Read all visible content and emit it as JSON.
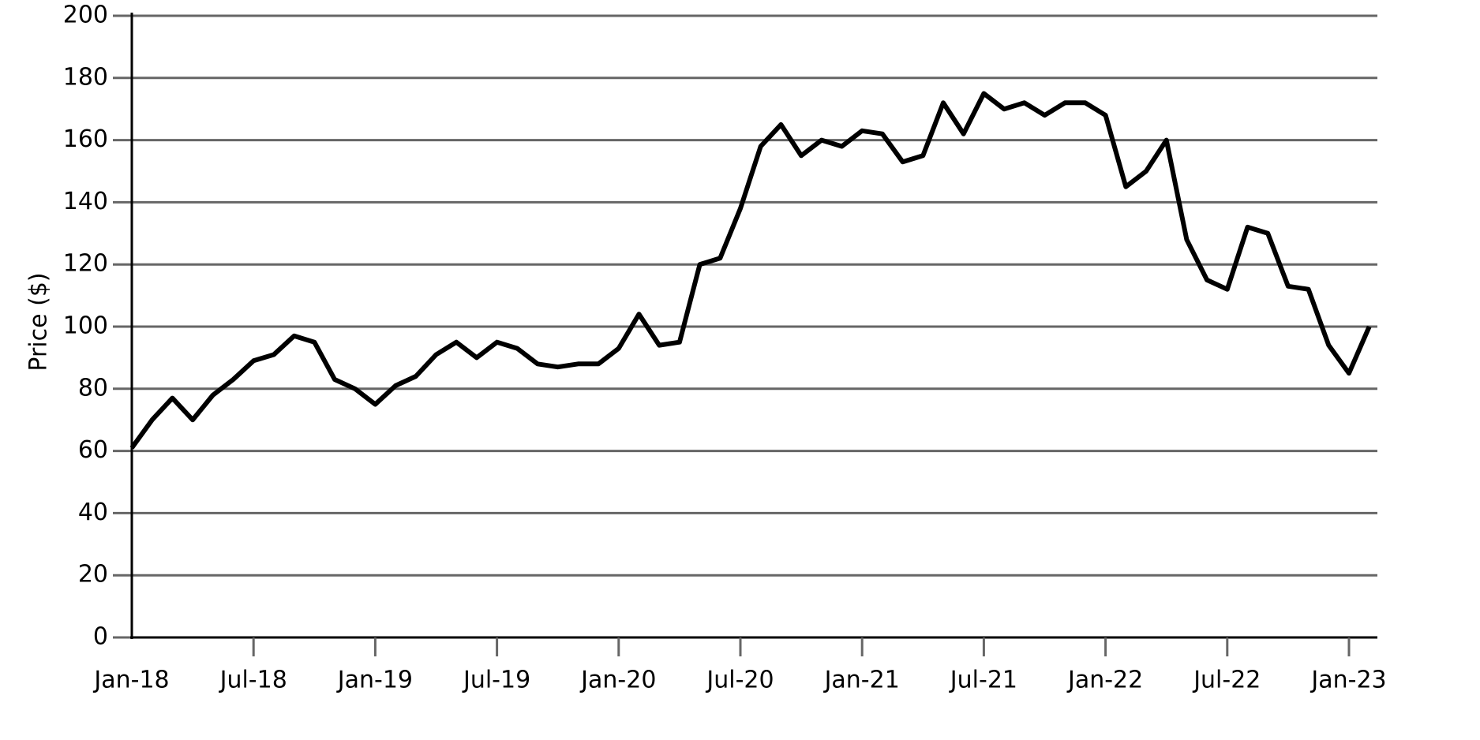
{
  "chart_data": {
    "type": "line",
    "ylabel": "Price ($)",
    "categories": [
      "Jan-18",
      null,
      null,
      null,
      null,
      null,
      "Jul-18",
      null,
      null,
      null,
      null,
      null,
      "Jan-19",
      null,
      null,
      null,
      null,
      null,
      "Jul-19",
      null,
      null,
      null,
      null,
      null,
      "Jan-20",
      null,
      null,
      null,
      null,
      null,
      "Jul-20",
      null,
      null,
      null,
      null,
      null,
      "Jan-21",
      null,
      null,
      null,
      null,
      null,
      "Jul-21",
      null,
      null,
      null,
      null,
      null,
      "Jan-22",
      null,
      null,
      null,
      null,
      null,
      "Jul-22",
      null,
      null,
      null,
      null,
      null,
      "Jan-23",
      null
    ],
    "values": [
      61,
      70,
      77,
      70,
      78,
      83,
      89,
      91,
      97,
      95,
      83,
      80,
      75,
      81,
      84,
      91,
      95,
      90,
      95,
      93,
      88,
      87,
      88,
      88,
      93,
      104,
      94,
      95,
      120,
      122,
      138,
      158,
      165,
      155,
      160,
      158,
      163,
      162,
      153,
      155,
      172,
      162,
      175,
      170,
      172,
      168,
      172,
      172,
      168,
      145,
      150,
      160,
      128,
      115,
      112,
      132,
      130,
      113,
      112,
      94,
      85,
      100
    ],
    "color": "#000000",
    "ylim": [
      0,
      200
    ],
    "yticks": [
      0,
      20,
      40,
      60,
      80,
      100,
      120,
      140,
      160,
      180,
      200
    ],
    "grid": true
  }
}
